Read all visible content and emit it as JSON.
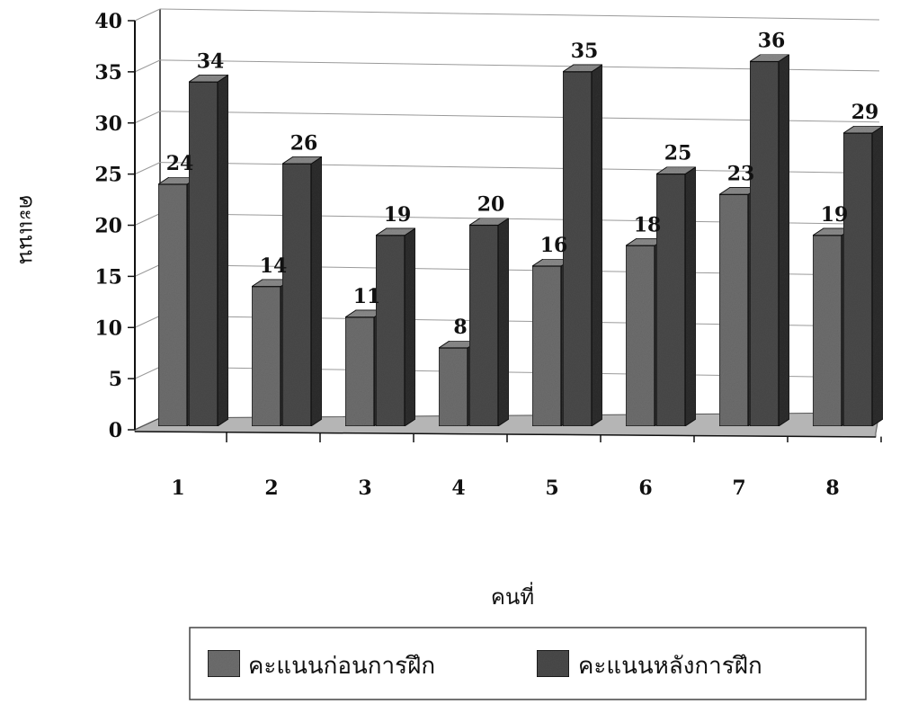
{
  "chart_data": {
    "type": "bar",
    "title": "",
    "xlabel": "คนที่",
    "ylabel": "คะแนน",
    "categories": [
      "1",
      "2",
      "3",
      "4",
      "5",
      "6",
      "7",
      "8"
    ],
    "series": [
      {
        "name": "คะแนนก่อนการฝึก",
        "values": [
          24,
          14,
          11,
          8,
          16,
          18,
          23,
          19
        ]
      },
      {
        "name": "คะแนนหลังการฝึก",
        "values": [
          34,
          26,
          19,
          20,
          35,
          25,
          36,
          29
        ]
      }
    ],
    "ylim": [
      0,
      40
    ],
    "yticks": [
      "0",
      "5",
      "10",
      "15",
      "20",
      "25",
      "30",
      "35",
      "40"
    ],
    "grid": true,
    "legend_position": "bottom",
    "style": "3d-bar",
    "colors": {
      "series_fill": [
        "#6e6e6e",
        "#4a4a4a"
      ],
      "floor": "#b5b5b5",
      "grid": "#9a9a9a"
    }
  }
}
